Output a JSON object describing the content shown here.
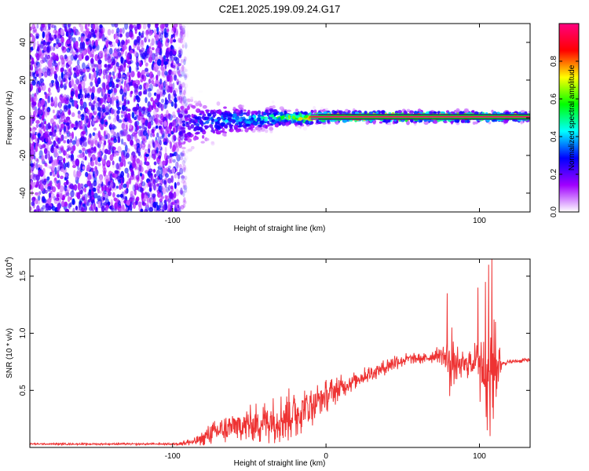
{
  "figure": {
    "title": "C2E1.2025.199.09.24.G17"
  },
  "chart_data": [
    {
      "type": "heatmap",
      "xlabel": "Height of straight line (km)",
      "ylabel": "Frequency (Hz)",
      "xlim": [
        -193,
        133
      ],
      "ylim": [
        -50,
        50
      ],
      "xticks": [
        -100,
        0,
        100
      ],
      "xtick_labels": [
        "-100",
        "",
        "100"
      ],
      "yticks": [
        -40,
        -20,
        0,
        20,
        40
      ],
      "ytick_labels": [
        "-40",
        "-20",
        "0",
        "20",
        "40"
      ],
      "grid": false,
      "colorbar": {
        "label": "Normalized spectral amplitude",
        "range": [
          0.0,
          1.0
        ],
        "ticks": [
          0.0,
          0.2,
          0.4,
          0.6,
          0.8
        ],
        "tick_labels": [
          "0.0",
          "0.2",
          "0.4",
          "0.6",
          "0.8"
        ],
        "colormap": [
          "#ffffff",
          "#a000ff",
          "#0000ff",
          "#00ffff",
          "#00ff00",
          "#ffff00",
          "#ff0000",
          "#ff0080"
        ]
      },
      "noise_region": {
        "x": [
          -193,
          -90
        ],
        "y": [
          -50,
          50
        ],
        "amplitude": [
          0.05,
          0.3
        ]
      },
      "band_points": [
        {
          "x": -95,
          "fc": -4,
          "spread": 8,
          "amp": 0.25
        },
        {
          "x": -85,
          "fc": -3,
          "spread": 6,
          "amp": 0.3
        },
        {
          "x": -75,
          "fc": -2,
          "spread": 5,
          "amp": 0.35
        },
        {
          "x": -60,
          "fc": -1,
          "spread": 4,
          "amp": 0.4
        },
        {
          "x": -45,
          "fc": -1,
          "spread": 3,
          "amp": 0.45
        },
        {
          "x": -35,
          "fc": 0,
          "spread": 3,
          "amp": 0.5
        },
        {
          "x": -25,
          "fc": 0,
          "spread": 2,
          "amp": 0.6
        },
        {
          "x": -10,
          "fc": 0,
          "spread": 2,
          "amp": 0.8
        },
        {
          "x": 0,
          "fc": 0.5,
          "spread": 1.5,
          "amp": 0.95
        },
        {
          "x": 30,
          "fc": 0.5,
          "spread": 1.5,
          "amp": 0.95
        },
        {
          "x": 60,
          "fc": 0.5,
          "spread": 1.5,
          "amp": 0.95
        },
        {
          "x": 80,
          "fc": 0.5,
          "spread": 1.5,
          "amp": 0.95
        },
        {
          "x": 100,
          "fc": 0.5,
          "spread": 1.5,
          "amp": 0.9
        },
        {
          "x": 133,
          "fc": 0.5,
          "spread": 1.2,
          "amp": 0.95
        }
      ],
      "peak_line_color": "#006000"
    },
    {
      "type": "line",
      "xlabel": "Height of straight line (km)",
      "ylabel": "SNR (10 * v/v)",
      "y_multiplier": "(x10",
      "y_multiplier_exp": "4",
      "y_multiplier_close": ")",
      "xlim": [
        -193,
        133
      ],
      "ylim": [
        0,
        1.65
      ],
      "xticks": [
        -100,
        0,
        100
      ],
      "xtick_labels": [
        "-100",
        "0",
        "100"
      ],
      "yticks": [
        0.5,
        1.0,
        1.5
      ],
      "ytick_labels": [
        "0.5",
        "1.0",
        "1.5"
      ],
      "grid": false,
      "series": [
        {
          "color": "#ee3333",
          "envelope": [
            {
              "x": -193,
              "mean": 0.03,
              "noise": 0.008
            },
            {
              "x": -100,
              "mean": 0.03,
              "noise": 0.008
            },
            {
              "x": -85,
              "mean": 0.05,
              "noise": 0.04
            },
            {
              "x": -75,
              "mean": 0.12,
              "noise": 0.1
            },
            {
              "x": -60,
              "mean": 0.18,
              "noise": 0.15
            },
            {
              "x": -40,
              "mean": 0.22,
              "noise": 0.2
            },
            {
              "x": -20,
              "mean": 0.3,
              "noise": 0.25
            },
            {
              "x": 0,
              "mean": 0.45,
              "noise": 0.15
            },
            {
              "x": 20,
              "mean": 0.6,
              "noise": 0.08
            },
            {
              "x": 35,
              "mean": 0.68,
              "noise": 0.07
            },
            {
              "x": 45,
              "mean": 0.75,
              "noise": 0.08
            },
            {
              "x": 55,
              "mean": 0.78,
              "noise": 0.05
            },
            {
              "x": 65,
              "mean": 0.78,
              "noise": 0.05
            },
            {
              "x": 75,
              "mean": 0.82,
              "noise": 0.08
            },
            {
              "x": 80,
              "mean": 0.75,
              "noise": 0.25
            },
            {
              "x": 88,
              "mean": 0.72,
              "noise": 0.12
            },
            {
              "x": 95,
              "mean": 0.75,
              "noise": 0.15
            },
            {
              "x": 100,
              "mean": 0.78,
              "noise": 0.2
            },
            {
              "x": 105,
              "mean": 0.75,
              "noise": 0.55
            },
            {
              "x": 110,
              "mean": 0.72,
              "noise": 0.4
            },
            {
              "x": 115,
              "mean": 0.74,
              "noise": 0.02
            },
            {
              "x": 133,
              "mean": 0.77,
              "noise": 0.02
            }
          ],
          "spikes": [
            {
              "x": 79,
              "y": 1.35
            },
            {
              "x": 80.5,
              "y": 0.45
            },
            {
              "x": 82,
              "y": 1.05
            },
            {
              "x": 99,
              "y": 1.4
            },
            {
              "x": 100.5,
              "y": 0.4
            },
            {
              "x": 103,
              "y": 0.55
            },
            {
              "x": 104,
              "y": 1.45
            },
            {
              "x": 105,
              "y": 0.15
            },
            {
              "x": 106,
              "y": 1.6
            },
            {
              "x": 107,
              "y": 0.1
            },
            {
              "x": 108,
              "y": 1.65
            },
            {
              "x": 109,
              "y": 0.25
            },
            {
              "x": 110.5,
              "y": 1.1
            }
          ]
        }
      ]
    }
  ]
}
